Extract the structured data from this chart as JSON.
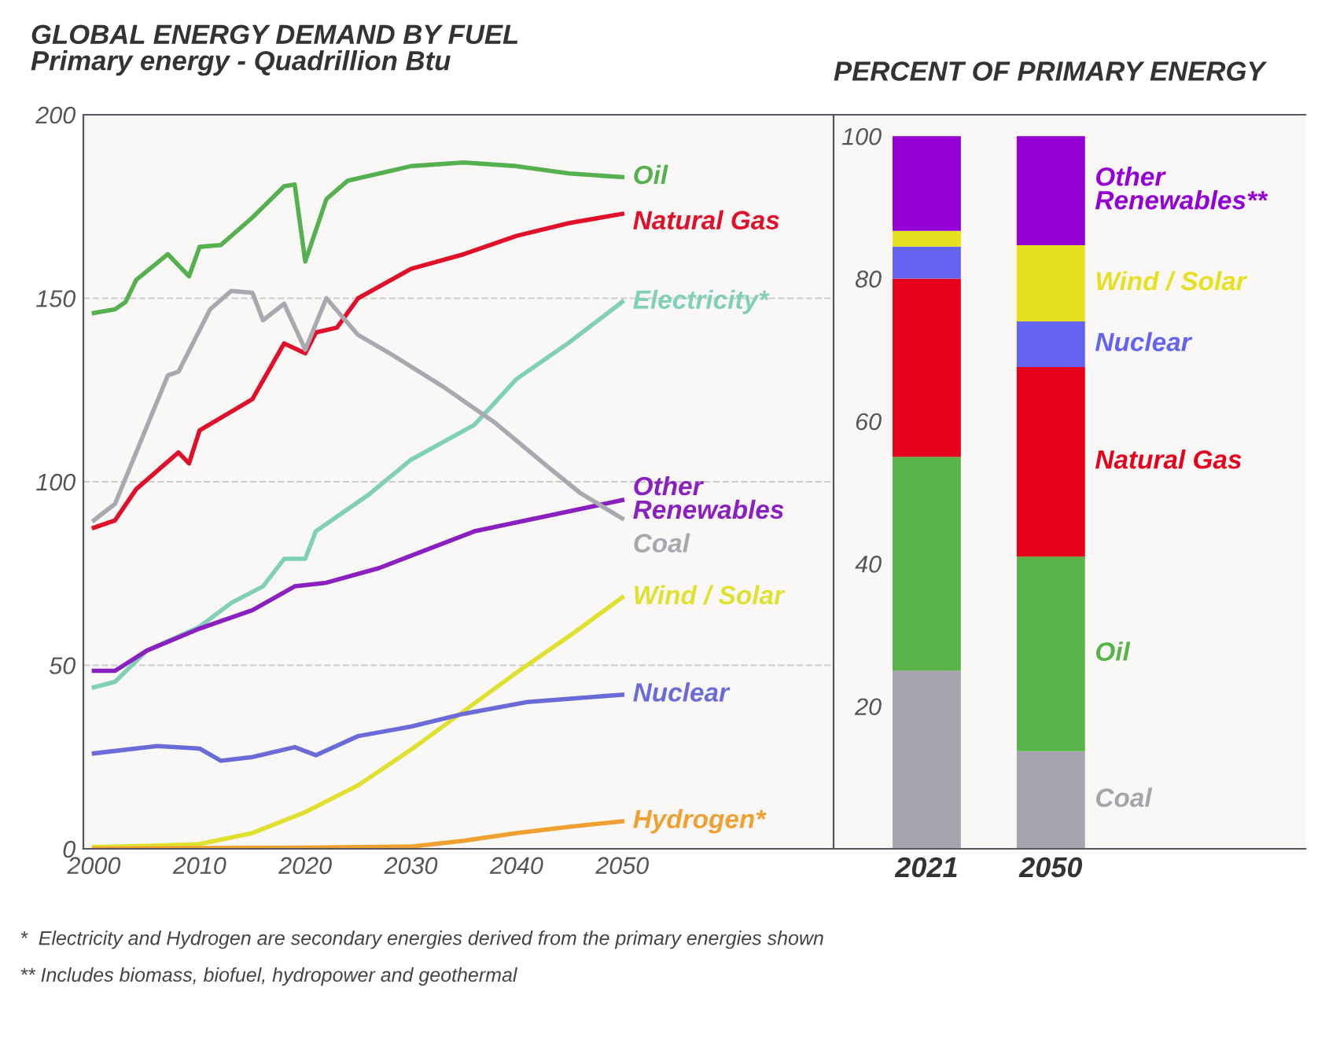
{
  "chart_data": [
    {
      "type": "line",
      "title": "GLOBAL ENERGY DEMAND BY FUEL",
      "subtitle": "Primary energy - Quadrillion Btu",
      "xlim": [
        1999,
        2070
      ],
      "xticks": [
        2000,
        2010,
        2020,
        2030,
        2040,
        2050
      ],
      "ylim": [
        0,
        200
      ],
      "yticks": [
        0,
        50,
        100,
        150,
        200
      ],
      "grid": "y",
      "legend": false,
      "line_style": "solid",
      "series": [
        {
          "name": "Oil",
          "color": "#55b050",
          "x": [
            2000,
            2002,
            2003,
            2004,
            2007,
            2009,
            2010,
            2012,
            2015,
            2018,
            2019,
            2020,
            2022,
            2024,
            2030,
            2035,
            2040,
            2045,
            2050
          ],
          "values": [
            146,
            147,
            149,
            155,
            162,
            156,
            164,
            164.5,
            172,
            180.5,
            181,
            160,
            177,
            182,
            186,
            187,
            186,
            184,
            183
          ]
        },
        {
          "name": "Natural Gas",
          "color": "#e0102a",
          "x": [
            2000,
            2002,
            2004,
            2008,
            2009,
            2010,
            2015,
            2018,
            2020,
            2021,
            2023,
            2025,
            2030,
            2035,
            2040,
            2045,
            2050
          ],
          "values": [
            87.5,
            89.5,
            98,
            108,
            105,
            114,
            122.5,
            137.7,
            135,
            140.7,
            142,
            150,
            158,
            162,
            167,
            170.5,
            173
          ]
        },
        {
          "name": "Electricity*",
          "color": "#80d0b8",
          "x": [
            2000,
            2002,
            2005,
            2010,
            2013,
            2016,
            2018,
            2020,
            2021,
            2026,
            2030,
            2036,
            2040,
            2045,
            2050
          ],
          "values": [
            44,
            45.5,
            54,
            60.5,
            67,
            71.5,
            79,
            79,
            86.5,
            96.5,
            106,
            115.5,
            128,
            138,
            149
          ]
        },
        {
          "name": "Other Renewables",
          "color": "#8a20c0",
          "x": [
            2000,
            2002,
            2005,
            2010,
            2015,
            2019,
            2022,
            2027,
            2036,
            2050
          ],
          "values": [
            48.5,
            48.5,
            54,
            60,
            65,
            71.5,
            72.5,
            76.5,
            86.5,
            95
          ]
        },
        {
          "name": "Coal",
          "color": "#a8a8b0",
          "x": [
            2000,
            2002,
            2007,
            2008,
            2011,
            2013,
            2015,
            2016,
            2018,
            2020,
            2022,
            2025,
            2028,
            2033,
            2038,
            2043,
            2046,
            2050
          ],
          "values": [
            89.5,
            94,
            129,
            130,
            147,
            152,
            151.5,
            144,
            148.5,
            136,
            150,
            140,
            135,
            126,
            116,
            104,
            97,
            90
          ]
        },
        {
          "name": "Wind / Solar",
          "color": "#e0e030",
          "x": [
            2000,
            2005,
            2010,
            2015,
            2020,
            2025,
            2030,
            2035,
            2040,
            2045,
            2050
          ],
          "values": [
            0.5,
            0.8,
            1.3,
            4.3,
            10,
            17.3,
            27,
            37.5,
            48,
            58,
            68.5
          ]
        },
        {
          "name": "Nuclear",
          "color": "#6a6ad8",
          "x": [
            2000,
            2006,
            2010,
            2012,
            2015,
            2019,
            2021,
            2025,
            2030,
            2035,
            2041,
            2050
          ],
          "values": [
            26,
            28,
            27.3,
            24,
            25,
            27.7,
            25.5,
            30.7,
            33.3,
            36.8,
            40,
            42
          ]
        },
        {
          "name": "Hydrogen*",
          "color": "#f0a030",
          "x": [
            2000,
            2010,
            2020,
            2030,
            2035,
            2040,
            2045,
            2050
          ],
          "values": [
            0,
            0.2,
            0.3,
            0.6,
            2.2,
            4.3,
            6,
            7.5
          ]
        }
      ],
      "annotations": [
        "*  Electricity and Hydrogen are secondary energies derived from the primary energies shown",
        "** Includes biomass, biofuel, hydropower and geothermal"
      ]
    },
    {
      "type": "bar",
      "title": "PERCENT OF PRIMARY ENERGY",
      "categories": [
        "2021",
        "2050"
      ],
      "stacked": true,
      "ylim": [
        0,
        103
      ],
      "yticks": [
        20,
        40,
        60,
        80,
        100
      ],
      "legend": false,
      "series": [
        {
          "name": "Coal",
          "color": "#a4a4ac",
          "values": [
            25,
            13.7
          ]
        },
        {
          "name": "Oil",
          "color": "#58b448",
          "values": [
            30,
            27.3
          ]
        },
        {
          "name": "Natural Gas",
          "color": "#e6001c",
          "values": [
            25,
            26.6
          ]
        },
        {
          "name": "Nuclear",
          "color": "#6464f0",
          "values": [
            4.5,
            6.4
          ]
        },
        {
          "name": "Wind / Solar",
          "color": "#e6e020",
          "values": [
            2.2,
            10.7
          ]
        },
        {
          "name": "Other Renewables**",
          "color": "#9400d3",
          "values": [
            13.3,
            15.3
          ]
        }
      ]
    }
  ]
}
